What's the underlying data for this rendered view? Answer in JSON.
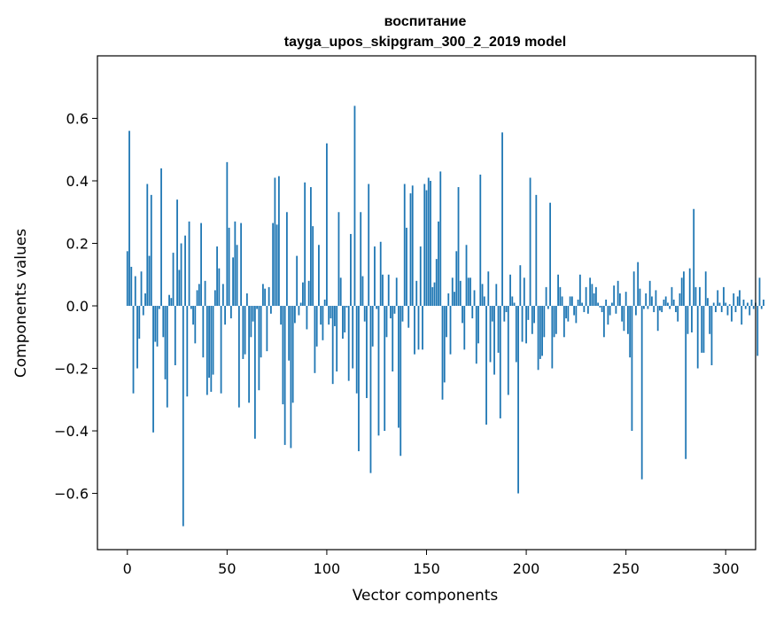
{
  "chart_data": {
    "type": "bar",
    "title": "воспитание",
    "subtitle": "tayga_upos_skipgram_300_2_2019 model",
    "xlabel": "Vector components",
    "ylabel": "Components values",
    "xlim": [
      -15,
      315
    ],
    "ylim": [
      -0.78,
      0.8
    ],
    "xticks": [
      0,
      50,
      100,
      150,
      200,
      250,
      300
    ],
    "yticks": [
      -0.6,
      -0.4,
      -0.2,
      0.0,
      0.2,
      0.4,
      0.6
    ],
    "bar_color": "#1f77b4",
    "grid": false,
    "legend": "none",
    "values": [
      0.175,
      0.56,
      0.125,
      -0.28,
      0.095,
      -0.2,
      -0.105,
      0.11,
      -0.03,
      0.04,
      0.39,
      0.16,
      0.355,
      -0.405,
      -0.115,
      -0.13,
      -0.01,
      0.44,
      -0.1,
      -0.235,
      -0.325,
      0.035,
      0.025,
      0.17,
      -0.19,
      0.34,
      0.115,
      0.2,
      -0.705,
      0.225,
      -0.29,
      0.27,
      -0.01,
      -0.06,
      -0.12,
      0.05,
      0.07,
      0.265,
      -0.165,
      0.08,
      -0.285,
      -0.23,
      -0.275,
      -0.22,
      0.05,
      0.19,
      0.12,
      -0.28,
      0.07,
      -0.06,
      0.46,
      0.25,
      -0.04,
      0.155,
      0.27,
      0.195,
      -0.325,
      0.265,
      -0.17,
      -0.155,
      0.04,
      -0.31,
      -0.1,
      -0.05,
      -0.425,
      -0.01,
      -0.27,
      -0.165,
      0.07,
      0.055,
      -0.145,
      0.06,
      -0.025,
      0.265,
      0.41,
      0.26,
      0.415,
      -0.06,
      -0.315,
      -0.445,
      0.3,
      -0.175,
      -0.455,
      -0.31,
      -0.055,
      0.16,
      -0.03,
      0.01,
      0.075,
      0.395,
      -0.075,
      0.08,
      0.38,
      0.255,
      -0.215,
      -0.13,
      0.195,
      -0.06,
      -0.11,
      0.02,
      0.52,
      -0.06,
      -0.04,
      -0.25,
      -0.065,
      -0.21,
      0.3,
      0.09,
      -0.105,
      -0.085,
      -0.005,
      -0.24,
      0.23,
      -0.2,
      0.64,
      -0.28,
      -0.465,
      0.3,
      0.095,
      -0.05,
      -0.295,
      0.39,
      -0.535,
      -0.13,
      0.19,
      -0.01,
      -0.415,
      0.205,
      0.1,
      -0.4,
      -0.1,
      0.1,
      -0.04,
      -0.21,
      -0.025,
      0.09,
      -0.39,
      -0.48,
      -0.05,
      0.39,
      0.25,
      -0.07,
      0.36,
      0.385,
      -0.155,
      0.08,
      -0.14,
      0.19,
      -0.14,
      0.39,
      0.37,
      0.41,
      0.4,
      0.06,
      0.075,
      0.15,
      0.27,
      0.43,
      -0.3,
      -0.245,
      -0.1,
      0.04,
      -0.155,
      0.09,
      0.045,
      0.175,
      0.38,
      0.08,
      -0.055,
      -0.14,
      0.195,
      0.09,
      0.09,
      -0.04,
      0.05,
      -0.185,
      -0.12,
      0.42,
      0.07,
      0.03,
      -0.38,
      0.11,
      -0.18,
      -0.05,
      -0.22,
      0.07,
      -0.15,
      -0.36,
      0.555,
      -0.05,
      -0.02,
      -0.285,
      0.1,
      0.03,
      0.01,
      -0.18,
      -0.6,
      0.13,
      -0.115,
      0.09,
      -0.12,
      -0.045,
      0.41,
      -0.09,
      -0.055,
      0.355,
      -0.205,
      -0.17,
      -0.16,
      -0.1,
      0.06,
      -0.01,
      0.33,
      -0.2,
      -0.1,
      -0.09,
      0.1,
      0.06,
      0.03,
      -0.1,
      -0.04,
      -0.05,
      0.03,
      0.03,
      -0.03,
      -0.055,
      0.02,
      0.1,
      0.01,
      -0.02,
      0.06,
      -0.025,
      0.09,
      0.07,
      0.04,
      0.06,
      0.01,
      -0.005,
      -0.02,
      -0.1,
      0.02,
      -0.06,
      -0.03,
      0.01,
      0.065,
      -0.025,
      0.08,
      0.04,
      -0.05,
      -0.08,
      0.045,
      -0.09,
      -0.165,
      -0.4,
      0.11,
      -0.03,
      0.14,
      0.055,
      -0.555,
      -0.01,
      0.04,
      -0.01,
      0.08,
      0.03,
      -0.02,
      0.05,
      -0.08,
      -0.015,
      -0.02,
      0.02,
      0.03,
      0.01,
      -0.01,
      0.06,
      0.02,
      -0.02,
      -0.05,
      0.04,
      0.09,
      0.11,
      -0.49,
      -0.09,
      0.12,
      -0.085,
      0.31,
      0.06,
      -0.2,
      0.06,
      -0.15,
      -0.15,
      0.11,
      0.025,
      -0.09,
      -0.19,
      0.01,
      -0.02,
      0.05,
      0.01,
      -0.02,
      0.06,
      0.01,
      -0.03,
      0.005,
      -0.05,
      0.04,
      -0.02,
      0.03,
      0.05,
      -0.06,
      0.02,
      -0.01,
      0.01,
      -0.03,
      0.02,
      -0.01,
      0.01,
      -0.16,
      0.09,
      -0.01,
      0.02
    ]
  }
}
